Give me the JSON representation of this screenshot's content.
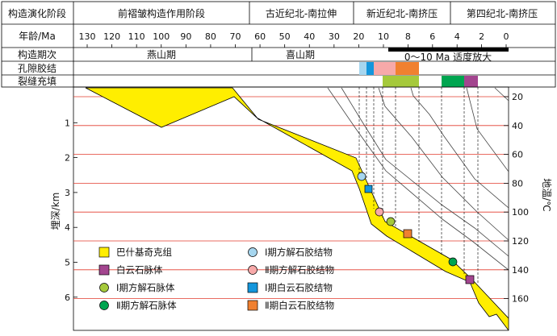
{
  "header": {
    "row1_label": "构造演化阶段",
    "stages": [
      {
        "label": "前褶皱构造作用阶段"
      },
      {
        "label": "古近纪北-南拉伸"
      },
      {
        "label": "新近纪北-南挤压"
      },
      {
        "label": "第四纪北-南挤压"
      }
    ],
    "age_label": "年龄/Ma",
    "age_ticks": [
      130,
      120,
      110,
      100,
      90,
      80,
      70,
      60,
      50,
      40,
      30,
      20,
      10,
      8,
      6,
      4,
      2,
      0
    ],
    "period_label": "构造期次",
    "periods": [
      {
        "label": "燕山期"
      },
      {
        "label": "喜山期"
      }
    ],
    "zoom_note": "0～10 Ma 适度放大",
    "pore_label": "孔隙胶结",
    "fracture_label": "裂缝充填"
  },
  "axes": {
    "depth_label": "埋深/km",
    "depth_ticks": [
      1,
      2,
      3,
      4,
      5,
      6
    ],
    "temp_label": "地温/℃",
    "temp_ticks": [
      20,
      40,
      60,
      80,
      100,
      120,
      140,
      160
    ]
  },
  "colors": {
    "formation": "#ffee00",
    "dolomite_vein": "#a3458f",
    "calcite_vein_1": "#a5c93b",
    "calcite_vein_2": "#00a550",
    "calcite_cement_1": "#a6d6ef",
    "calcite_cement_2": "#f7a9a9",
    "dolomite_cement_1": "#1496dc",
    "dolomite_cement_2": "#f08030",
    "isotherm": "#e23b2e"
  },
  "legend": [
    {
      "label": "巴什基奇克组",
      "symbol": "square",
      "color_key": "formation"
    },
    {
      "label": "Ⅰ期方解石胶结物",
      "symbol": "circle",
      "color_key": "calcite_cement_1"
    },
    {
      "label": "白云石脉体",
      "symbol": "square",
      "color_key": "dolomite_vein"
    },
    {
      "label": "Ⅱ期方解石胶结物",
      "symbol": "circle",
      "color_key": "calcite_cement_2"
    },
    {
      "label": "Ⅰ期方解石脉体",
      "symbol": "circle",
      "color_key": "calcite_vein_1"
    },
    {
      "label": "Ⅰ期白云石胶结物",
      "symbol": "square",
      "color_key": "dolomite_cement_1"
    },
    {
      "label": "Ⅱ期方解石脉体",
      "symbol": "circle",
      "color_key": "calcite_vein_2"
    },
    {
      "label": "Ⅱ期白云石胶结物",
      "symbol": "square",
      "color_key": "dolomite_cement_2"
    }
  ]
}
